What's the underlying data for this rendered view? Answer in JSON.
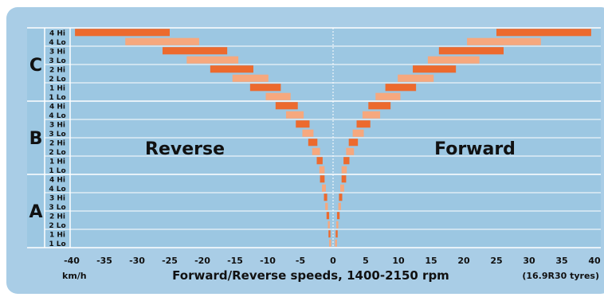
{
  "chart_data": {
    "type": "bar",
    "orientation": "horizontal",
    "title": "Forward/Reverse speeds, 1400-2150 rpm",
    "unit_label": "km/h",
    "note": "(16.9R30 tyres)",
    "xlim": [
      -40,
      40
    ],
    "x_ticks": [
      -40,
      -35,
      -30,
      -25,
      -20,
      -15,
      -10,
      -5,
      0,
      5,
      10,
      15,
      20,
      25,
      30,
      35,
      40
    ],
    "grid": true,
    "annotations": {
      "left": "Reverse",
      "right": "Forward"
    },
    "colors": {
      "hi": "#ec6a2e",
      "lo": "#f6a87e",
      "plot_background": "#9cc7e2",
      "frame_background": "#a9cde6",
      "gridline": "#ffffff",
      "text": "#111111"
    },
    "ranges": [
      {
        "name": "A",
        "gears": [
          {
            "label": "1 Lo",
            "type": "lo",
            "forward": [
              0.3,
              0.6
            ],
            "reverse": [
              -0.6,
              -0.3
            ]
          },
          {
            "label": "1 Hi",
            "type": "hi",
            "forward": [
              0.4,
              0.7
            ],
            "reverse": [
              -0.7,
              -0.4
            ]
          },
          {
            "label": "2 Lo",
            "type": "lo",
            "forward": [
              0.5,
              0.8
            ],
            "reverse": [
              -0.8,
              -0.5
            ]
          },
          {
            "label": "2 Hi",
            "type": "hi",
            "forward": [
              0.6,
              1.0
            ],
            "reverse": [
              -1.0,
              -0.6
            ]
          },
          {
            "label": "3 Lo",
            "type": "lo",
            "forward": [
              0.8,
              1.2
            ],
            "reverse": [
              -1.2,
              -0.8
            ]
          },
          {
            "label": "3 Hi",
            "type": "hi",
            "forward": [
              0.9,
              1.4
            ],
            "reverse": [
              -1.4,
              -0.9
            ]
          },
          {
            "label": "4 Lo",
            "type": "lo",
            "forward": [
              1.1,
              1.7
            ],
            "reverse": [
              -1.7,
              -1.1
            ]
          },
          {
            "label": "4 Hi",
            "type": "hi",
            "forward": [
              1.3,
              2.0
            ],
            "reverse": [
              -2.0,
              -1.3
            ]
          }
        ]
      },
      {
        "name": "B",
        "gears": [
          {
            "label": "1 Lo",
            "type": "lo",
            "forward": [
              1.3,
              2.1
            ],
            "reverse": [
              -2.1,
              -1.3
            ]
          },
          {
            "label": "1 Hi",
            "type": "hi",
            "forward": [
              1.6,
              2.5
            ],
            "reverse": [
              -2.5,
              -1.6
            ]
          },
          {
            "label": "2 Lo",
            "type": "lo",
            "forward": [
              2.0,
              3.2
            ],
            "reverse": [
              -3.2,
              -2.0
            ]
          },
          {
            "label": "2 Hi",
            "type": "hi",
            "forward": [
              2.4,
              3.8
            ],
            "reverse": [
              -3.8,
              -2.4
            ]
          },
          {
            "label": "3 Lo",
            "type": "lo",
            "forward": [
              3.0,
              4.7
            ],
            "reverse": [
              -4.7,
              -3.0
            ]
          },
          {
            "label": "3 Hi",
            "type": "hi",
            "forward": [
              3.6,
              5.7
            ],
            "reverse": [
              -5.7,
              -3.6
            ]
          },
          {
            "label": "4 Lo",
            "type": "lo",
            "forward": [
              4.5,
              7.2
            ],
            "reverse": [
              -7.2,
              -4.5
            ]
          },
          {
            "label": "4 Hi",
            "type": "hi",
            "forward": [
              5.4,
              8.8
            ],
            "reverse": [
              -8.8,
              -5.4
            ]
          }
        ]
      },
      {
        "name": "C",
        "gears": [
          {
            "label": "1 Lo",
            "type": "lo",
            "forward": [
              6.5,
              10.3
            ],
            "reverse": [
              -10.3,
              -6.5
            ]
          },
          {
            "label": "1 Hi",
            "type": "hi",
            "forward": [
              8.0,
              12.7
            ],
            "reverse": [
              -12.7,
              -8.0
            ]
          },
          {
            "label": "2 Lo",
            "type": "lo",
            "forward": [
              9.9,
              15.4
            ],
            "reverse": [
              -15.4,
              -9.9
            ]
          },
          {
            "label": "2 Hi",
            "type": "hi",
            "forward": [
              12.2,
              18.8
            ],
            "reverse": [
              -18.8,
              -12.2
            ]
          },
          {
            "label": "3 Lo",
            "type": "lo",
            "forward": [
              14.5,
              22.4
            ],
            "reverse": [
              -22.4,
              -14.5
            ]
          },
          {
            "label": "3 Hi",
            "type": "hi",
            "forward": [
              16.2,
              26.1
            ],
            "reverse": [
              -26.1,
              -16.2
            ]
          },
          {
            "label": "4 Lo",
            "type": "lo",
            "forward": [
              20.5,
              31.8
            ],
            "reverse": [
              -31.8,
              -20.5
            ]
          },
          {
            "label": "4 Hi",
            "type": "hi",
            "forward": [
              25.0,
              39.5
            ],
            "reverse": [
              -39.5,
              -25.0
            ]
          }
        ]
      }
    ]
  }
}
